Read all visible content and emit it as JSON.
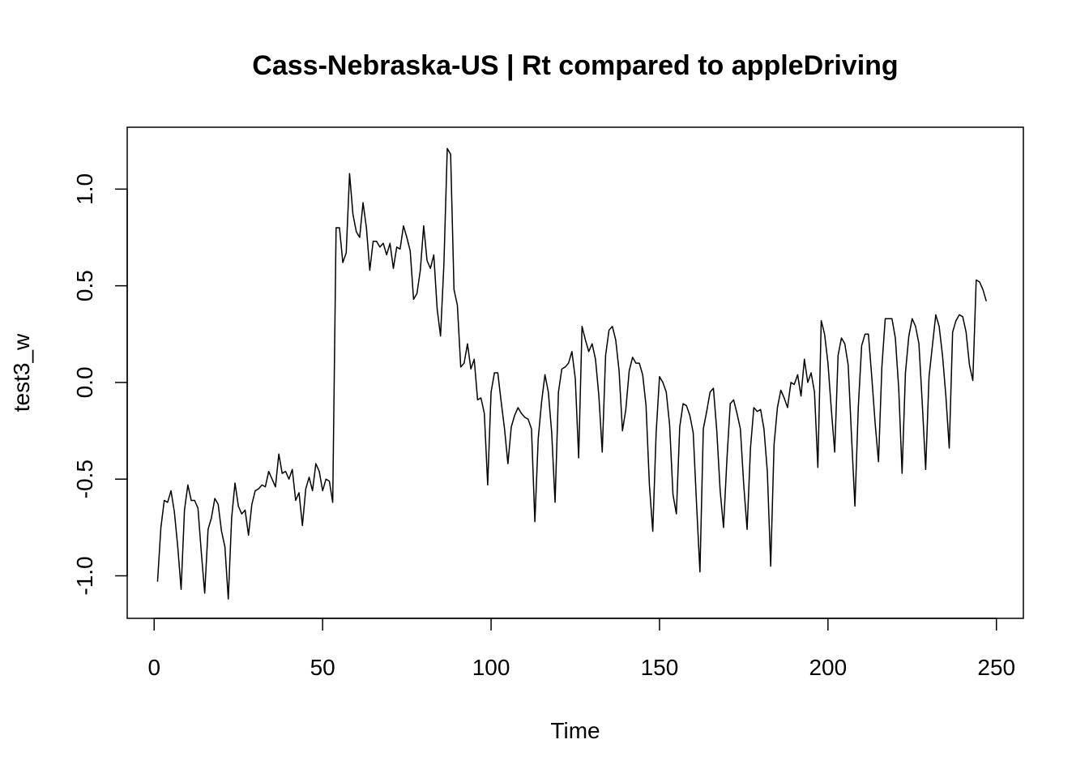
{
  "chart_data": {
    "type": "line",
    "title": "Cass-Nebraska-US | Rt compared to appleDriving",
    "xlabel": "Time",
    "ylabel": "test3_w",
    "xlim": [
      -8,
      258
    ],
    "ylim": [
      -1.22,
      1.32
    ],
    "x_ticks": [
      0,
      50,
      100,
      150,
      200,
      250
    ],
    "y_ticks": [
      -1.0,
      -0.5,
      0.0,
      0.5,
      1.0
    ],
    "y_tick_labels": [
      "-1.0",
      "-0.5",
      "0.0",
      "0.5",
      "1.0"
    ],
    "grid": false,
    "legend": "none",
    "line_color": "#000000",
    "x_start": 1,
    "series": [
      {
        "values": [
          -1.03,
          -0.75,
          -0.61,
          -0.62,
          -0.56,
          -0.67,
          -0.85,
          -1.07,
          -0.66,
          -0.53,
          -0.61,
          -0.61,
          -0.65,
          -0.88,
          -1.09,
          -0.76,
          -0.7,
          -0.6,
          -0.63,
          -0.77,
          -0.85,
          -1.12,
          -0.7,
          -0.52,
          -0.64,
          -0.68,
          -0.66,
          -0.79,
          -0.63,
          -0.56,
          -0.55,
          -0.53,
          -0.54,
          -0.46,
          -0.5,
          -0.54,
          -0.37,
          -0.47,
          -0.46,
          -0.5,
          -0.45,
          -0.61,
          -0.57,
          -0.74,
          -0.55,
          -0.49,
          -0.56,
          -0.42,
          -0.46,
          -0.56,
          -0.5,
          -0.51,
          -0.62,
          0.8,
          0.8,
          0.62,
          0.67,
          1.08,
          0.87,
          0.78,
          0.75,
          0.93,
          0.8,
          0.58,
          0.73,
          0.73,
          0.7,
          0.72,
          0.66,
          0.72,
          0.59,
          0.7,
          0.69,
          0.81,
          0.75,
          0.68,
          0.43,
          0.46,
          0.58,
          0.81,
          0.63,
          0.59,
          0.66,
          0.38,
          0.24,
          0.61,
          1.21,
          1.18,
          0.48,
          0.4,
          0.08,
          0.1,
          0.2,
          0.07,
          0.12,
          -0.09,
          -0.08,
          -0.16,
          -0.53,
          -0.05,
          0.05,
          0.05,
          -0.1,
          -0.24,
          -0.42,
          -0.23,
          -0.17,
          -0.13,
          -0.16,
          -0.18,
          -0.19,
          -0.24,
          -0.72,
          -0.29,
          -0.1,
          0.04,
          -0.05,
          -0.26,
          -0.62,
          -0.05,
          0.07,
          0.08,
          0.1,
          0.16,
          0.02,
          -0.39,
          0.29,
          0.22,
          0.16,
          0.2,
          0.12,
          -0.07,
          -0.36,
          0.14,
          0.27,
          0.29,
          0.22,
          0.06,
          -0.25,
          -0.14,
          0.06,
          0.13,
          0.1,
          0.1,
          0.04,
          -0.12,
          -0.53,
          -0.77,
          -0.26,
          0.03,
          0.0,
          -0.05,
          -0.22,
          -0.58,
          -0.68,
          -0.23,
          -0.11,
          -0.12,
          -0.17,
          -0.26,
          -0.63,
          -0.98,
          -0.24,
          -0.15,
          -0.05,
          -0.03,
          -0.25,
          -0.56,
          -0.75,
          -0.4,
          -0.11,
          -0.09,
          -0.16,
          -0.24,
          -0.53,
          -0.76,
          -0.34,
          -0.13,
          -0.15,
          -0.14,
          -0.24,
          -0.46,
          -0.95,
          -0.32,
          -0.13,
          -0.04,
          -0.08,
          -0.13,
          0.0,
          -0.01,
          0.04,
          -0.07,
          0.12,
          0.0,
          0.05,
          -0.05,
          -0.44,
          0.32,
          0.25,
          0.1,
          -0.14,
          -0.36,
          0.14,
          0.23,
          0.2,
          0.09,
          -0.28,
          -0.64,
          -0.13,
          0.19,
          0.25,
          0.25,
          0.03,
          -0.21,
          -0.41,
          0.08,
          0.33,
          0.33,
          0.33,
          0.23,
          -0.03,
          -0.47,
          0.05,
          0.24,
          0.33,
          0.29,
          0.2,
          -0.11,
          -0.45,
          0.03,
          0.19,
          0.35,
          0.29,
          0.14,
          -0.07,
          -0.34,
          0.26,
          0.32,
          0.35,
          0.34,
          0.26,
          0.09,
          0.01,
          0.53,
          0.52,
          0.48,
          0.42
        ]
      }
    ]
  }
}
